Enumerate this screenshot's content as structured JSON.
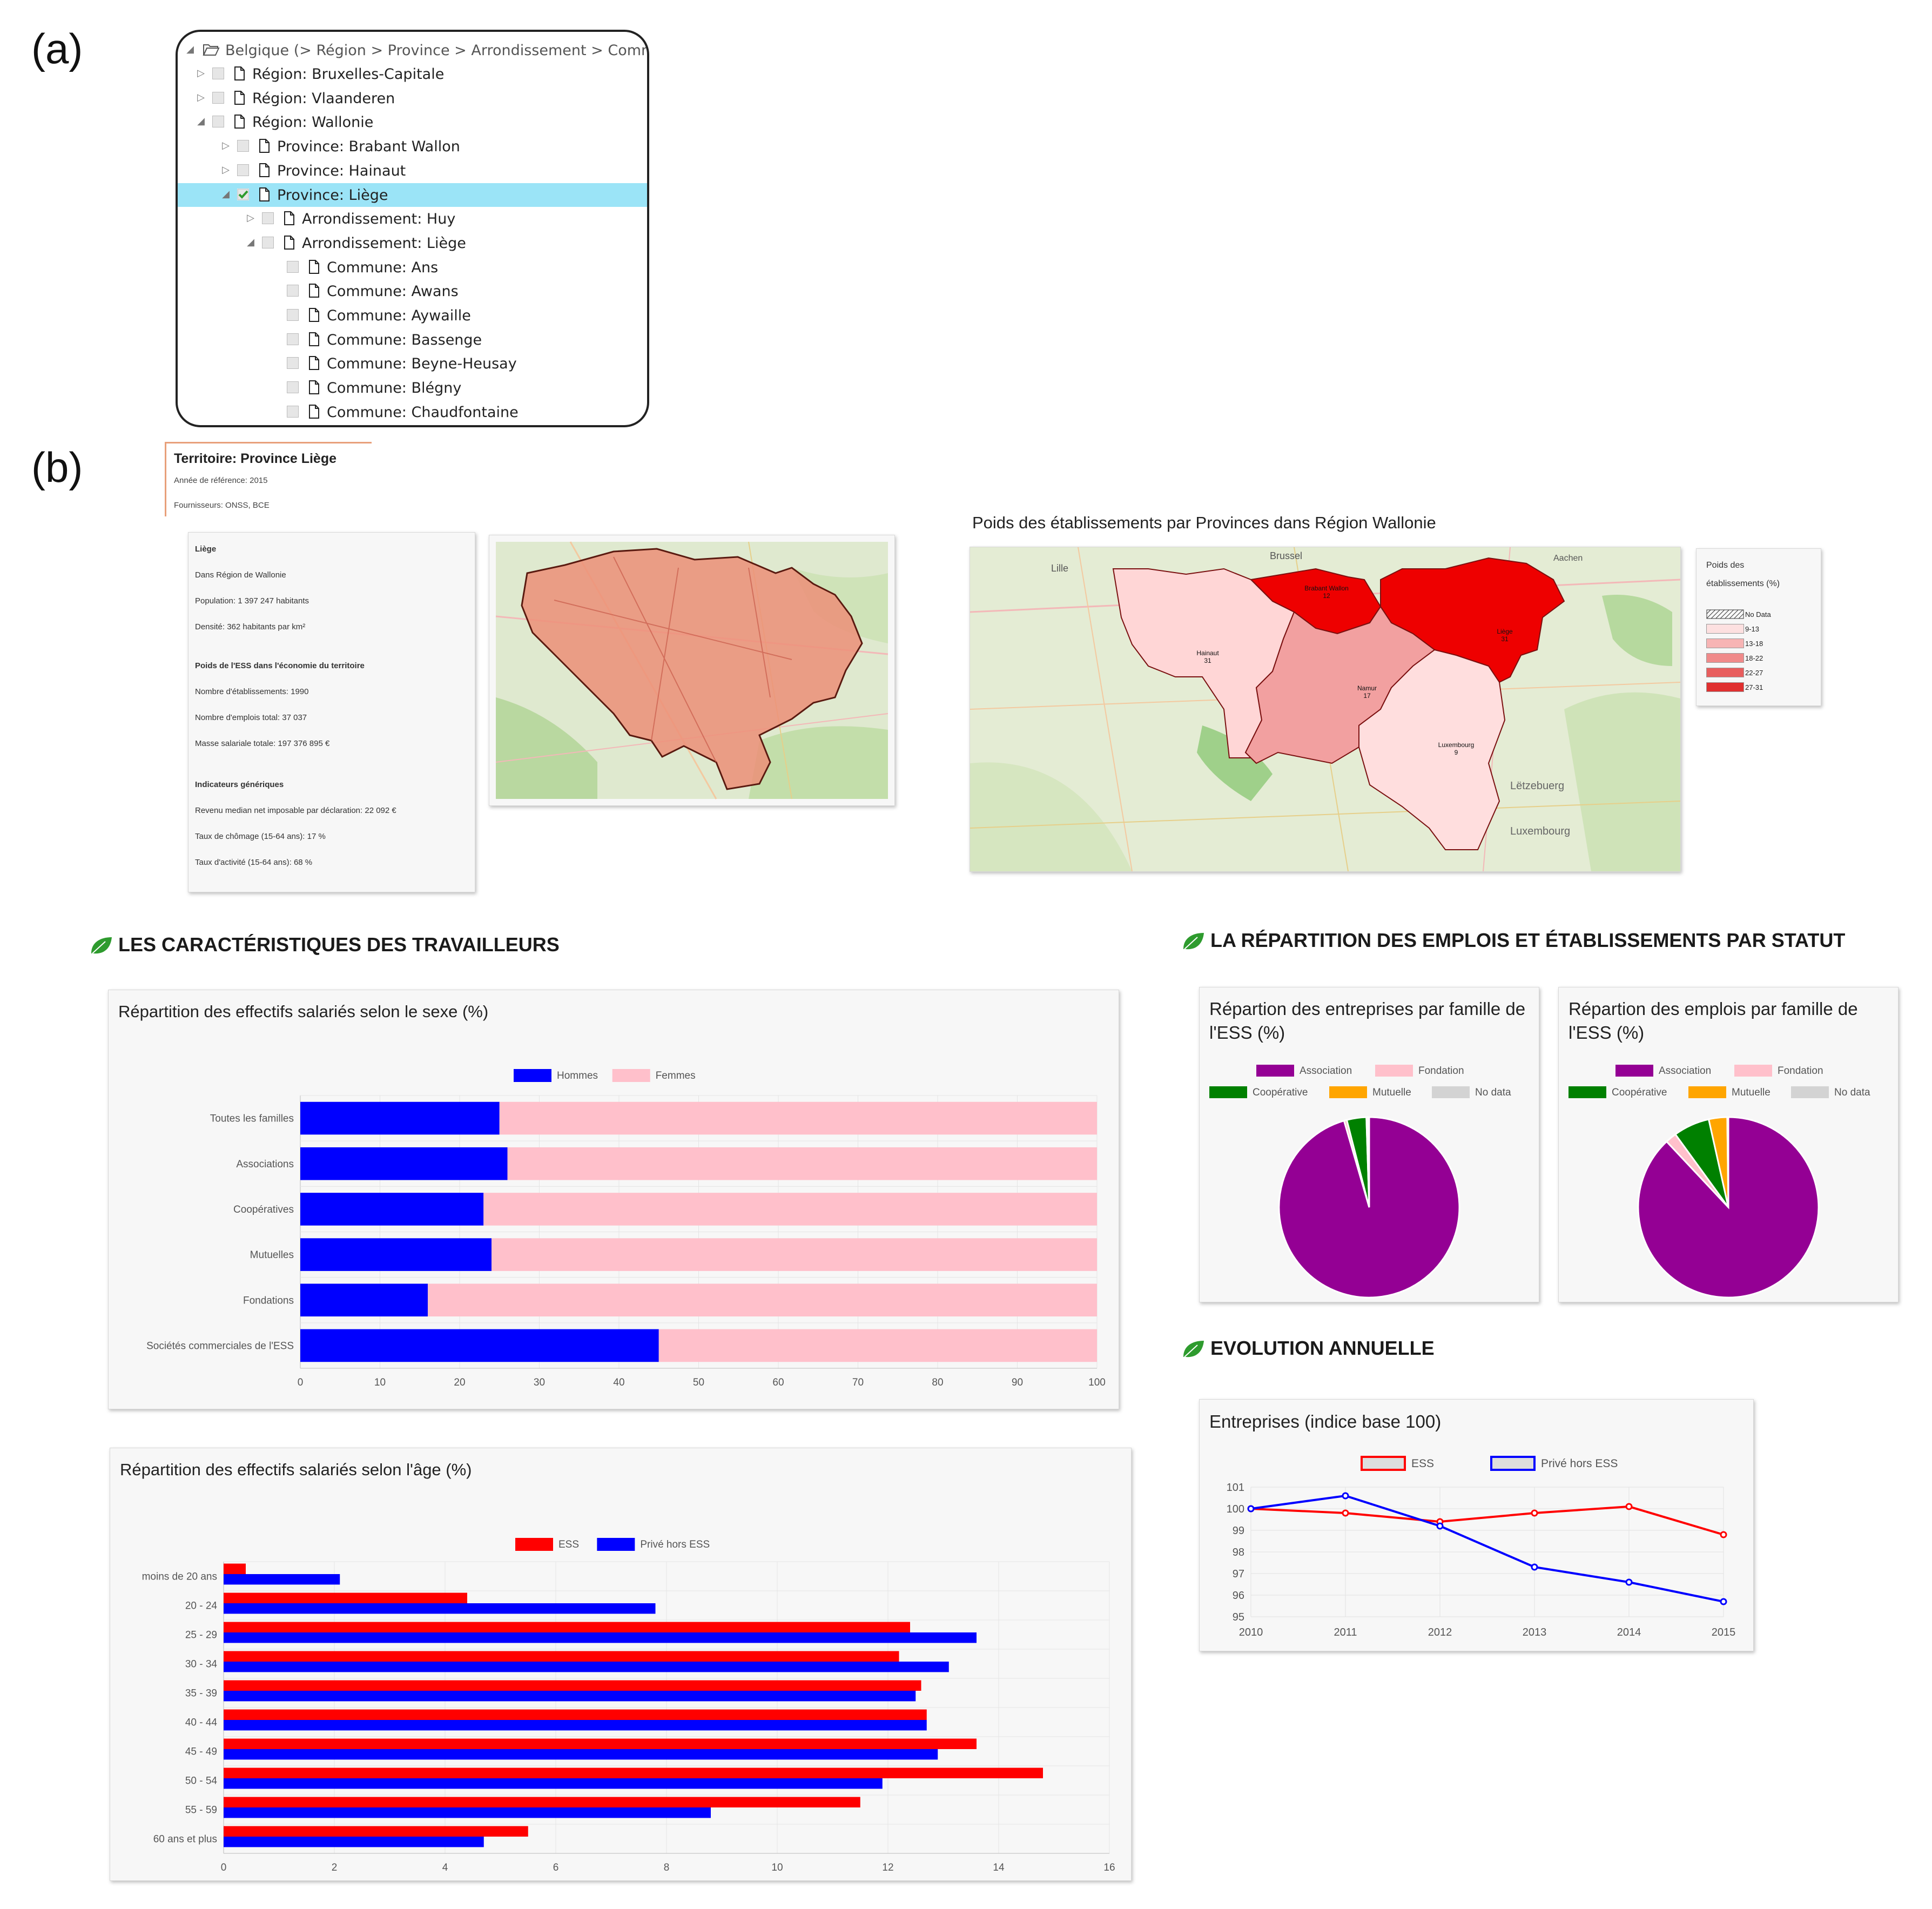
{
  "labels": {
    "a": "(a)",
    "b": "(b)"
  },
  "tree": {
    "root": "Belgique (> Région > Province > Arrondissement > Commune)",
    "rows": [
      {
        "label": "Région: Bruxelles-Capitale",
        "level": 1,
        "toggle": "▷",
        "checked": false,
        "selected": false
      },
      {
        "label": "Région: Vlaanderen",
        "level": 1,
        "toggle": "▷",
        "checked": false,
        "selected": false
      },
      {
        "label": "Région: Wallonie",
        "level": 1,
        "toggle": "◢",
        "checked": false,
        "selected": false
      },
      {
        "label": "Province: Brabant Wallon",
        "level": 2,
        "toggle": "▷",
        "checked": false,
        "selected": false
      },
      {
        "label": "Province: Hainaut",
        "level": 2,
        "toggle": "▷",
        "checked": false,
        "selected": false
      },
      {
        "label": "Province: Liège",
        "level": 2,
        "toggle": "◢",
        "checked": true,
        "selected": true
      },
      {
        "label": "Arrondissement: Huy",
        "level": 3,
        "toggle": "▷",
        "checked": false,
        "selected": false
      },
      {
        "label": "Arrondissement: Liège",
        "level": 3,
        "toggle": "◢",
        "checked": false,
        "selected": false
      },
      {
        "label": "Commune: Ans",
        "level": 4,
        "toggle": "",
        "checked": false,
        "selected": false
      },
      {
        "label": "Commune: Awans",
        "level": 4,
        "toggle": "",
        "checked": false,
        "selected": false
      },
      {
        "label": "Commune: Aywaille",
        "level": 4,
        "toggle": "",
        "checked": false,
        "selected": false
      },
      {
        "label": "Commune: Bassenge",
        "level": 4,
        "toggle": "",
        "checked": false,
        "selected": false
      },
      {
        "label": "Commune: Beyne-Heusay",
        "level": 4,
        "toggle": "",
        "checked": false,
        "selected": false
      },
      {
        "label": "Commune: Blégny",
        "level": 4,
        "toggle": "",
        "checked": false,
        "selected": false
      },
      {
        "label": "Commune: Chaudfontaine",
        "level": 4,
        "toggle": "",
        "checked": false,
        "selected": false
      }
    ]
  },
  "territory": {
    "title": "Territoire: Province Liège",
    "year": "Année de référence: 2015",
    "providers": "Fournisseurs: ONSS, BCE"
  },
  "info": {
    "name": "Liège",
    "in_region": "Dans Région de Wallonie",
    "population": "Population: 1 397 247 habitants",
    "density": "Densité: 362 habitants par km²",
    "ess_heading": "Poids de l'ESS dans l'économie du territoire",
    "establishments": "Nombre d'établissements: 1990",
    "jobs": "Nombre d'emplois total: 37 037",
    "payroll": "Masse salariale totale: 197 376 895 €",
    "generic_heading": "Indicateurs génériques",
    "income": "Revenu median net imposable par déclaration: 22 092 €",
    "unemployment": "Taux de chômage (15-64 ans): 17 %",
    "activity": "Taux d'activité (15-64 ans): 68 %"
  },
  "map_big": {
    "title": "Poids des établissements par Provinces dans Région Wallonie",
    "provinces": [
      {
        "name": "Hainaut",
        "value": "31",
        "color": "#ee0000"
      },
      {
        "name": "Brabant Wallon",
        "value": "12",
        "color": "#ffd6d6"
      },
      {
        "name": "Liège",
        "value": "31",
        "color": "#ee0000"
      },
      {
        "name": "Namur",
        "value": "17",
        "color": "#f2a0a0"
      },
      {
        "name": "Luxembourg",
        "value": "9",
        "color": "#ffdede"
      }
    ],
    "place_labels": [
      "Brussel",
      "Lille",
      "Aachen",
      "Lëtzebuerg",
      "Luxembourg"
    ],
    "legend_title_1": "Poids des",
    "legend_title_2": "établissements (%)",
    "legend_items": [
      {
        "label": "No Data",
        "color": "hatch"
      },
      {
        "label": "9-13",
        "color": "#fde0e0"
      },
      {
        "label": "13-18",
        "color": "#f7b4b4"
      },
      {
        "label": "18-22",
        "color": "#f08a8a"
      },
      {
        "label": "22-27",
        "color": "#e85e5e"
      },
      {
        "label": "27-31",
        "color": "#e03030"
      }
    ]
  },
  "sections": {
    "workers": "LES CARACTÉRISTIQUES DES TRAVAILLEURS",
    "distribution": "LA RÉPARTITION DES EMPLOIS ET ÉTABLISSEMENTS PAR STATUT",
    "evolution": "EVOLUTION ANNUELLE"
  },
  "colors": {
    "blue": "#0000ff",
    "pink": "#ffc0cb",
    "red": "#ff0000",
    "purple": "#940094",
    "green": "#008000",
    "orange": "#ffa500",
    "grey": "#d3d3d3",
    "leaf": "#2e9b2e"
  },
  "chart_data": [
    {
      "id": "sex",
      "type": "bar",
      "orientation": "horizontal",
      "stacked": true,
      "title": "Répartition des effectifs salariés selon le sexe (%)",
      "categories": [
        "Toutes les familles",
        "Associations",
        "Coopératives",
        "Mutuelles",
        "Fondations",
        "Sociétés commerciales de l'ESS"
      ],
      "series": [
        {
          "name": "Hommes",
          "color": "#0000ff",
          "values": [
            25,
            26,
            23,
            24,
            16,
            45
          ]
        },
        {
          "name": "Femmes",
          "color": "#ffc0cb",
          "values": [
            75,
            74,
            77,
            76,
            84,
            55
          ]
        }
      ],
      "xlim": [
        0,
        100
      ],
      "xticks": [
        0,
        10,
        20,
        30,
        40,
        50,
        60,
        70,
        80,
        90,
        100
      ],
      "legend": "top"
    },
    {
      "id": "age",
      "type": "bar",
      "orientation": "horizontal",
      "stacked": false,
      "title": "Répartition des effectifs salariés selon l'âge (%)",
      "categories": [
        "moins de 20 ans",
        "20 - 24",
        "25 - 29",
        "30 - 34",
        "35 - 39",
        "40 - 44",
        "45 - 49",
        "50 - 54",
        "55 - 59",
        "60 ans et plus"
      ],
      "series": [
        {
          "name": "ESS",
          "color": "#ff0000",
          "values": [
            0.4,
            4.4,
            12.4,
            12.2,
            12.6,
            12.7,
            13.6,
            14.8,
            11.5,
            5.5
          ]
        },
        {
          "name": "Privé hors ESS",
          "color": "#0000ff",
          "values": [
            2.1,
            7.8,
            13.6,
            13.1,
            12.5,
            12.7,
            12.9,
            11.9,
            8.8,
            4.7
          ]
        }
      ],
      "xlim": [
        0,
        16
      ],
      "xticks": [
        0,
        2,
        4,
        6,
        8,
        10,
        12,
        14,
        16
      ],
      "legend": "top"
    },
    {
      "id": "pie-enterprises",
      "type": "pie",
      "title": "Répartion des entreprises par famille de l'ESS (%)",
      "labels": [
        "Association",
        "Fondation",
        "Coopérative",
        "Mutuelle",
        "No data"
      ],
      "colors": [
        "#940094",
        "#ffc0cb",
        "#008000",
        "#ffa500",
        "#d3d3d3"
      ],
      "values": [
        95.5,
        0.5,
        3.5,
        0.3,
        0.2
      ]
    },
    {
      "id": "pie-jobs",
      "type": "pie",
      "title": "Répartion des emplois par famille de l'ESS (%)",
      "labels": [
        "Association",
        "Fondation",
        "Coopérative",
        "Mutuelle",
        "No data"
      ],
      "colors": [
        "#940094",
        "#ffc0cb",
        "#008000",
        "#ffa500",
        "#d3d3d3"
      ],
      "values": [
        88,
        2,
        6.5,
        3.3,
        0.2
      ]
    },
    {
      "id": "evolution",
      "type": "line",
      "title": "Entreprises (indice base 100)",
      "x": [
        2010,
        2011,
        2012,
        2013,
        2014,
        2015
      ],
      "series": [
        {
          "name": "ESS",
          "color": "#ff0000",
          "values": [
            100,
            99.8,
            99.4,
            99.8,
            100.1,
            98.8
          ]
        },
        {
          "name": "Privé hors ESS",
          "color": "#0000ff",
          "values": [
            100,
            100.6,
            99.2,
            97.3,
            96.6,
            95.7
          ]
        }
      ],
      "ylim": [
        95,
        101
      ],
      "yticks": [
        95,
        96,
        97,
        98,
        99,
        100,
        101
      ],
      "legend": "top"
    }
  ]
}
